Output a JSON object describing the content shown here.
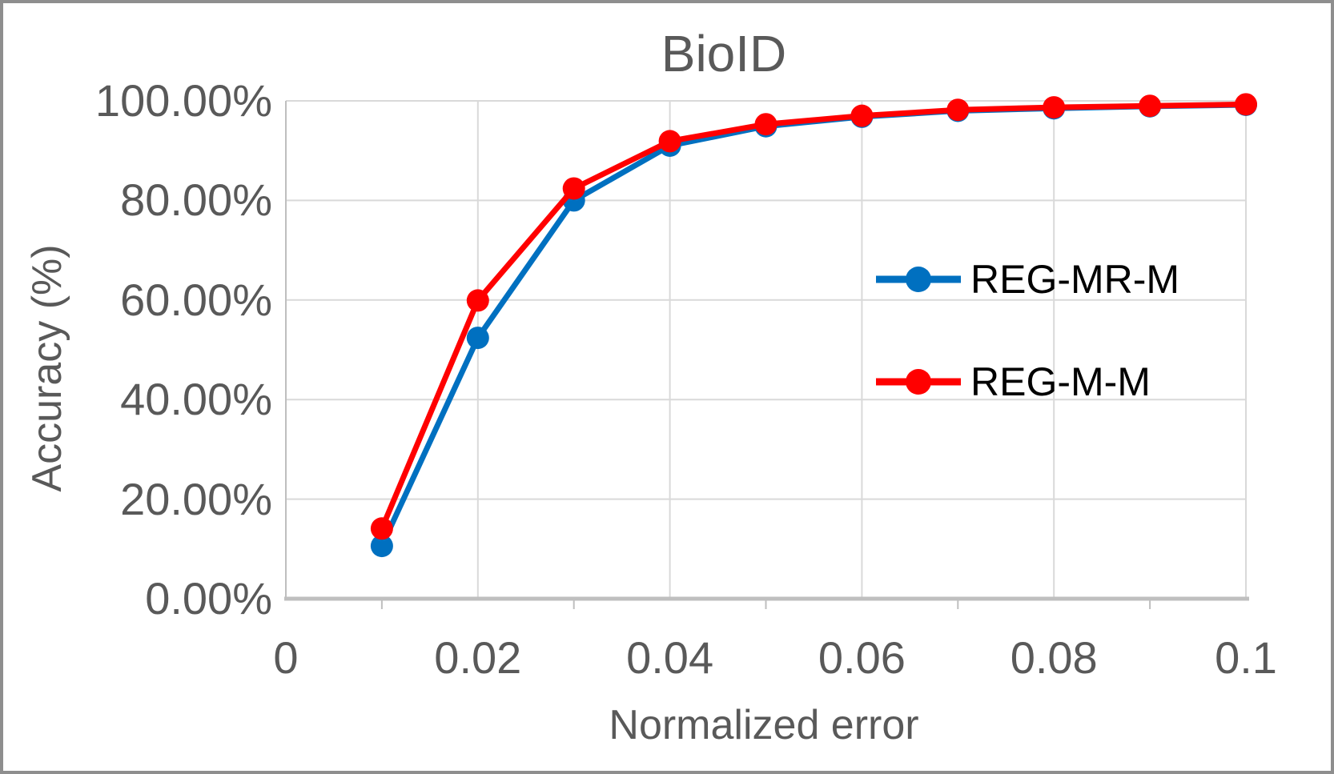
{
  "chart_data": {
    "type": "line",
    "title": "BioID",
    "xlabel": "Normalized error",
    "ylabel": "Accuracy (%)",
    "xlim": [
      0,
      0.1
    ],
    "ylim": [
      0,
      100
    ],
    "grid": true,
    "legend_position": "inside-right",
    "x": [
      0.01,
      0.02,
      0.03,
      0.04,
      0.05,
      0.06,
      0.07,
      0.08,
      0.09,
      0.1
    ],
    "series": [
      {
        "name": "REG-MR-M",
        "color": "#0070C0",
        "values": [
          10.6,
          52.4,
          80.0,
          91.0,
          94.9,
          96.8,
          98.0,
          98.5,
          98.9,
          99.2
        ]
      },
      {
        "name": "REG-M-M",
        "color": "#FF0000",
        "values": [
          14.1,
          59.9,
          82.4,
          91.9,
          95.3,
          97.0,
          98.2,
          98.7,
          99.0,
          99.3
        ]
      }
    ],
    "xtick_values": [
      0,
      0.02,
      0.04,
      0.06,
      0.08,
      0.1
    ],
    "xtick_labels": [
      "0",
      "0.02",
      "0.04",
      "0.06",
      "0.08",
      "0.1"
    ],
    "minor_xtick_values": [
      0.01,
      0.03,
      0.05,
      0.07,
      0.09
    ],
    "ytick_values": [
      0,
      20,
      40,
      60,
      80,
      100
    ],
    "ytick_labels": [
      "0.00%",
      "20.00%",
      "40.00%",
      "60.00%",
      "80.00%",
      "100.00%"
    ]
  },
  "colors": {
    "background": "#FFFFFF",
    "border": "#8E8E8E",
    "gridline": "#D9D9D9",
    "axis_line": "#BFBFBF",
    "text": "#595959",
    "legend_text": "#000000"
  }
}
